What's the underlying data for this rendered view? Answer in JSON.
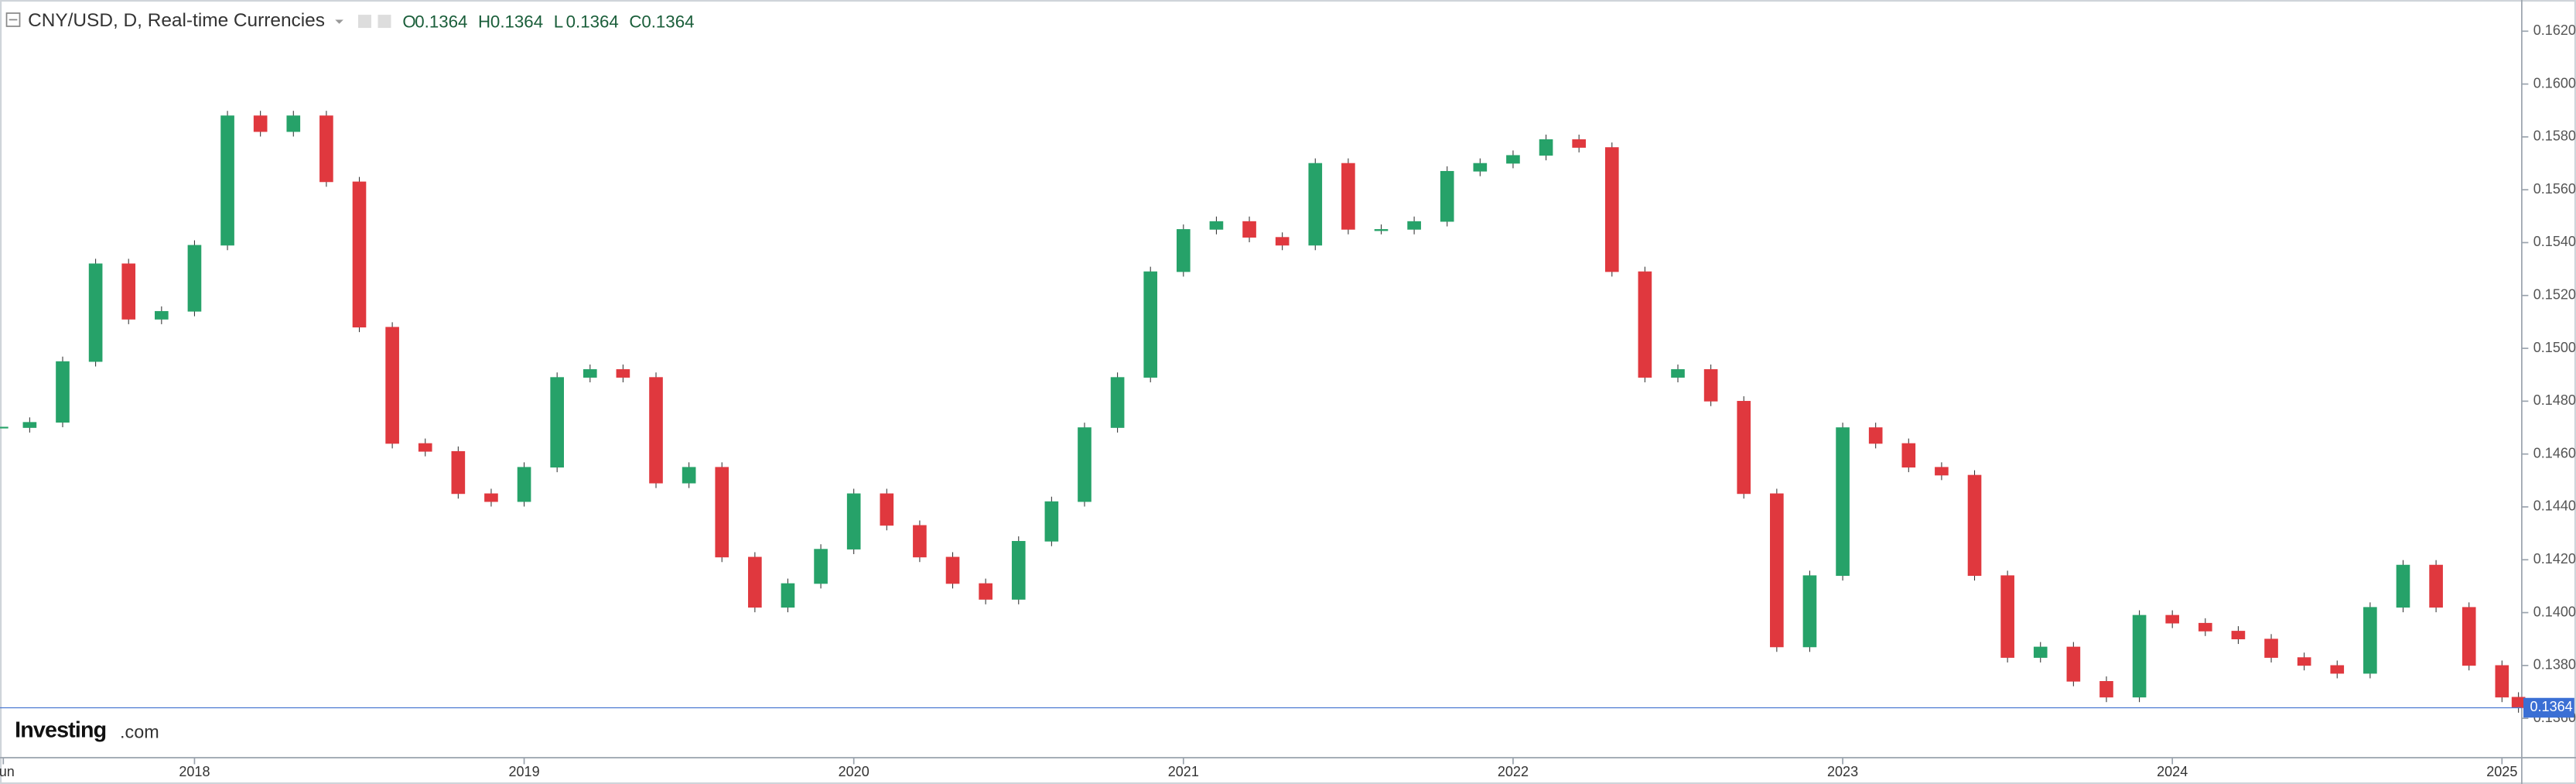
{
  "chart_data": {
    "type": "candlestick",
    "title": "CNY/USD, D, Real-time Currencies",
    "ohlc": [
      {
        "label": "O",
        "value": "0.1364"
      },
      {
        "label": "H",
        "value": "0.1364"
      },
      {
        "label": "L",
        "value": "0.1364"
      },
      {
        "label": "C",
        "value": "0.1364"
      }
    ],
    "logo": {
      "brand": "Investing",
      "suffix": ".com"
    },
    "last_price": 0.1364,
    "up_color": "#26a269",
    "down_color": "#e0383e",
    "x": [
      2017.42,
      2017.5,
      2017.6,
      2017.7,
      2017.8,
      2017.9,
      2018.0,
      2018.1,
      2018.2,
      2018.3,
      2018.4,
      2018.5,
      2018.6,
      2018.7,
      2018.8,
      2018.9,
      2019.0,
      2019.1,
      2019.2,
      2019.3,
      2019.4,
      2019.5,
      2019.6,
      2019.7,
      2019.8,
      2019.9,
      2020.0,
      2020.1,
      2020.2,
      2020.3,
      2020.4,
      2020.5,
      2020.6,
      2020.7,
      2020.8,
      2020.9,
      2021.0,
      2021.1,
      2021.2,
      2021.3,
      2021.4,
      2021.5,
      2021.6,
      2021.7,
      2021.8,
      2021.9,
      2022.0,
      2022.1,
      2022.2,
      2022.3,
      2022.4,
      2022.5,
      2022.6,
      2022.7,
      2022.8,
      2022.9,
      2023.0,
      2023.1,
      2023.2,
      2023.3,
      2023.4,
      2023.5,
      2023.6,
      2023.7,
      2023.8,
      2023.9,
      2024.0,
      2024.1,
      2024.2,
      2024.3,
      2024.4,
      2024.5,
      2024.6,
      2024.7,
      2024.8,
      2024.9,
      2025.0,
      2025.05
    ],
    "series": [
      {
        "name": "CNY/USD",
        "values": [
          0.147,
          0.1472,
          0.1495,
          0.1532,
          0.1511,
          0.1514,
          0.1539,
          0.1588,
          0.1582,
          0.1588,
          0.1563,
          0.1508,
          0.1464,
          0.1461,
          0.1445,
          0.1442,
          0.1455,
          0.1489,
          0.1492,
          0.1489,
          0.1449,
          0.1455,
          0.1421,
          0.1402,
          0.1411,
          0.1424,
          0.1445,
          0.1433,
          0.1421,
          0.1411,
          0.1405,
          0.1427,
          0.1442,
          0.147,
          0.1489,
          0.1529,
          0.1545,
          0.1548,
          0.1542,
          0.1539,
          0.157,
          0.1545,
          0.1545,
          0.1548,
          0.1567,
          0.157,
          0.1573,
          0.1579,
          0.1576,
          0.1529,
          0.1489,
          0.1492,
          0.148,
          0.1445,
          0.1387,
          0.1414,
          0.147,
          0.1464,
          0.1455,
          0.1452,
          0.1414,
          0.1383,
          0.1387,
          0.1374,
          0.1368,
          0.1399,
          0.1396,
          0.1393,
          0.139,
          0.1383,
          0.138,
          0.1377,
          0.1402,
          0.1418,
          0.1402,
          0.138,
          0.1368,
          0.1364
        ]
      }
    ],
    "xlim": [
      2017.41,
      2025.06
    ],
    "xticks": [
      {
        "value": 2017.42,
        "label": "Jun"
      },
      2018,
      2019,
      2020,
      2021,
      2022,
      2023,
      2024,
      2025
    ],
    "ylim": [
      0.13451,
      0.16318
    ],
    "yticks": [
      {
        "value": 0.136,
        "label": "0.1360"
      },
      {
        "value": 0.138,
        "label": "0.1380"
      },
      {
        "value": 0.14,
        "label": "0.1400"
      },
      {
        "value": 0.142,
        "label": "0.1420"
      },
      {
        "value": 0.144,
        "label": "0.1440"
      },
      {
        "value": 0.146,
        "label": "0.1460"
      },
      {
        "value": 0.148,
        "label": "0.1480"
      },
      {
        "value": 0.15,
        "label": "0.1500"
      },
      {
        "value": 0.152,
        "label": "0.1520"
      },
      {
        "value": 0.154,
        "label": "0.1540"
      },
      {
        "value": 0.156,
        "label": "0.1560"
      },
      {
        "value": 0.158,
        "label": "0.1580"
      },
      {
        "value": 0.16,
        "label": "0.1600"
      },
      {
        "value": 0.162,
        "label": "0.1620"
      }
    ]
  }
}
